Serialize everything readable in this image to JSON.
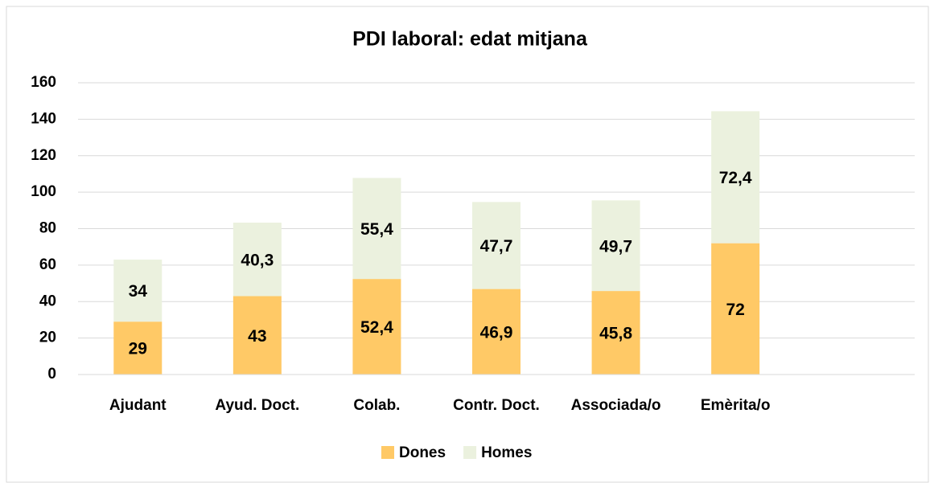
{
  "chart_data": {
    "type": "stacked_bar",
    "title": "PDI laboral: edat mitjana",
    "categories": [
      "Ajudant",
      "Ayud. Doct.",
      "Colab.",
      "Contr. Doct.",
      "Associada/o",
      "Emèrita/o"
    ],
    "series": [
      {
        "name": "Dones",
        "color": "#ffc966",
        "values": [
          29,
          43,
          52.4,
          46.9,
          45.8,
          72
        ],
        "value_labels": [
          "29",
          "43",
          "52,4",
          "46,9",
          "45,8",
          "72"
        ]
      },
      {
        "name": "Homes",
        "color": "#ebf1de",
        "values": [
          34,
          40.3,
          55.4,
          47.7,
          49.7,
          72.4
        ],
        "value_labels": [
          "34",
          "40,3",
          "55,4",
          "47,7",
          "49,7",
          "72,4"
        ]
      }
    ],
    "ylim": [
      0,
      160
    ],
    "yticks": [
      0,
      20,
      40,
      60,
      80,
      100,
      120,
      140,
      160
    ],
    "grid": true,
    "legend": "bottom"
  }
}
